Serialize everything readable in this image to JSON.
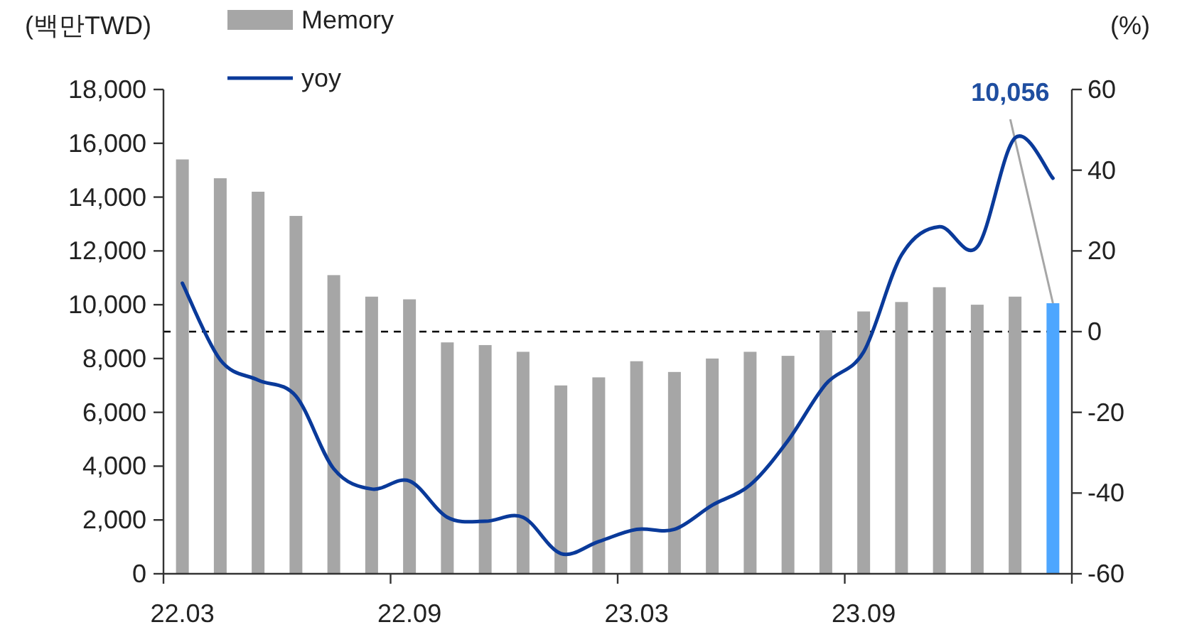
{
  "chart_data": {
    "type": "bar",
    "ylabel": "(백만TWD)",
    "y2label": "(%)",
    "categories": [
      "22.03",
      null,
      null,
      null,
      null,
      null,
      "22.09",
      null,
      null,
      null,
      null,
      null,
      "23.03",
      null,
      null,
      null,
      null,
      null,
      "23.09",
      null,
      null,
      null,
      null,
      null
    ],
    "series": [
      {
        "name": "Memory",
        "colors": [
          "#a6a6a6",
          "#a6a6a6",
          "#a6a6a6",
          "#a6a6a6",
          "#a6a6a6",
          "#a6a6a6",
          "#a6a6a6",
          "#a6a6a6",
          "#a6a6a6",
          "#a6a6a6",
          "#a6a6a6",
          "#a6a6a6",
          "#a6a6a6",
          "#a6a6a6",
          "#a6a6a6",
          "#a6a6a6",
          "#a6a6a6",
          "#a6a6a6",
          "#a6a6a6",
          "#a6a6a6",
          "#a6a6a6",
          "#a6a6a6",
          "#a6a6a6",
          "#4da6ff"
        ],
        "values": [
          15400,
          14700,
          14200,
          13300,
          11100,
          10300,
          10200,
          8600,
          8500,
          8250,
          7000,
          7300,
          7900,
          7500,
          8000,
          8250,
          8100,
          9050,
          9750,
          10100,
          10650,
          10000,
          10300,
          10056
        ],
        "value_labels": [
          null,
          null,
          null,
          null,
          null,
          null,
          null,
          null,
          null,
          null,
          null,
          null,
          null,
          null,
          null,
          null,
          null,
          null,
          null,
          null,
          null,
          null,
          null,
          "10,056"
        ]
      },
      {
        "name": "yoy",
        "type": "line",
        "color": "#0a3a9a",
        "axis": "y2",
        "values": [
          12,
          -7,
          -12,
          -16,
          -34,
          -39,
          -37,
          -46,
          -47,
          -46,
          -55,
          -52,
          -49,
          -49,
          -43,
          -38,
          -27,
          -13,
          -5,
          19,
          26,
          21,
          48,
          38
        ]
      }
    ],
    "ylim": [
      0,
      18000
    ],
    "yticks": [
      0,
      {
        "value": 2000,
        "label": "2,000"
      },
      {
        "value": 4000,
        "label": "4,000"
      },
      {
        "value": 6000,
        "label": "6,000"
      },
      {
        "value": 8000,
        "label": "8,000"
      },
      {
        "value": 10000,
        "label": "10,000"
      },
      {
        "value": 12000,
        "label": "12,000"
      },
      {
        "value": 14000,
        "label": "14,000"
      },
      {
        "value": 16000,
        "label": "16,000"
      },
      {
        "value": 18000,
        "label": "18,000"
      }
    ],
    "y2lim": [
      -60,
      60
    ],
    "y2ticks": [
      -60,
      -40,
      -20,
      0,
      20,
      40,
      60
    ],
    "ref_lines": [
      {
        "axis": "y2",
        "value": 0,
        "color": "#000000",
        "line_style": "dashed"
      }
    ],
    "legend": "top left"
  }
}
